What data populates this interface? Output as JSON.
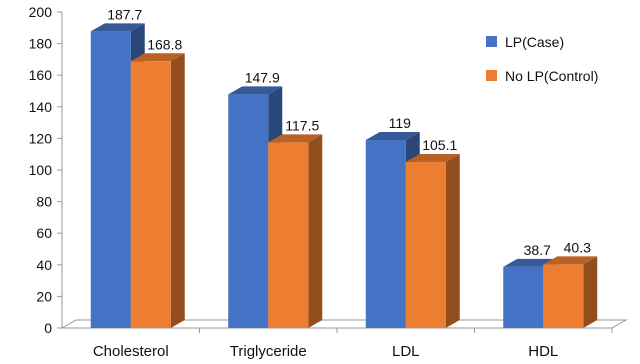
{
  "chart_data": {
    "type": "bar",
    "style": "3d-clustered-column",
    "categories": [
      "Cholesterol",
      "Triglyceride",
      "LDL",
      "HDL"
    ],
    "series": [
      {
        "name": "LP(Case)",
        "color": "#4472C4",
        "values": [
          187.7,
          147.9,
          119,
          38.7
        ],
        "labels": [
          "187.7",
          "147.9",
          "119",
          "38.7"
        ]
      },
      {
        "name": "No LP(Control)",
        "color": "#ED7D31",
        "values": [
          168.8,
          117.5,
          105.1,
          40.3
        ],
        "labels": [
          "168.8",
          "117.5",
          "105.1",
          "40.3"
        ]
      }
    ],
    "ylim": [
      0,
      200
    ],
    "yticks": [
      0,
      20,
      40,
      60,
      80,
      100,
      120,
      140,
      160,
      180,
      200
    ],
    "grid": false,
    "legend_position": "top-right"
  }
}
